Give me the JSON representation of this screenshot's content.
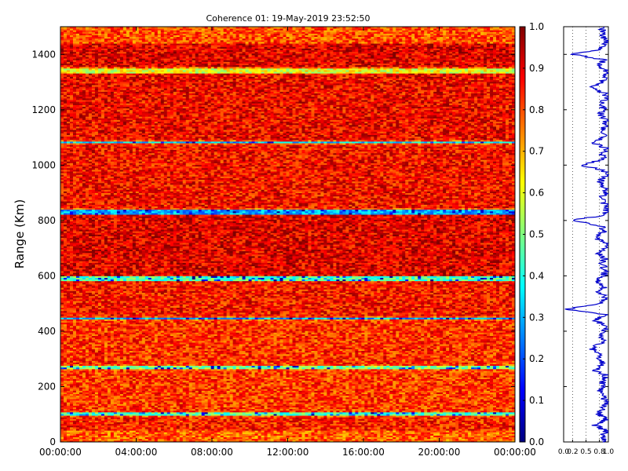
{
  "figure": {
    "title": "Coherence 01: 19-May-2019 23:52:50"
  },
  "colors": {
    "colormap": [
      "#00007f",
      "#0000ff",
      "#007fff",
      "#00ffff",
      "#7fff7f",
      "#ffff00",
      "#ff7f00",
      "#ff0000",
      "#7f0000"
    ],
    "profile_line": "#0000cc"
  },
  "chart_data": [
    {
      "type": "heatmap",
      "colormap": "jet",
      "xlabel": "",
      "ylabel": "Range (Km)",
      "x_ticks": [
        "00:00:00",
        "04:00:00",
        "08:00:00",
        "12:00:00",
        "16:00:00",
        "20:00:00",
        "00:00:00"
      ],
      "y_ticks": [
        0,
        200,
        400,
        600,
        800,
        1000,
        1200,
        1400
      ],
      "ylim": [
        0,
        1500
      ],
      "clim": [
        0.0,
        1.0
      ],
      "colorbar_ticks": [
        "0.0",
        "0.1",
        "0.2",
        "0.3",
        "0.4",
        "0.5",
        "0.6",
        "0.7",
        "0.8",
        "0.9",
        "1.0"
      ],
      "range_band_coherence": [
        {
          "range": [
            0,
            40
          ],
          "value": 0.78
        },
        {
          "range": [
            40,
            90
          ],
          "value": 0.85
        },
        {
          "range": [
            95,
            108
          ],
          "value": 0.45
        },
        {
          "range": [
            110,
            260
          ],
          "value": 0.82
        },
        {
          "range": [
            262,
            275
          ],
          "value": 0.5
        },
        {
          "range": [
            280,
            440
          ],
          "value": 0.83
        },
        {
          "range": [
            442,
            450
          ],
          "value": 0.3
        },
        {
          "range": [
            455,
            580
          ],
          "value": 0.86
        },
        {
          "range": [
            582,
            598
          ],
          "value": 0.45
        },
        {
          "range": [
            600,
            820
          ],
          "value": 0.9
        },
        {
          "range": [
            825,
            840
          ],
          "value": 0.3
        },
        {
          "range": [
            845,
            1075
          ],
          "value": 0.87
        },
        {
          "range": [
            1078,
            1088
          ],
          "value": 0.35
        },
        {
          "range": [
            1090,
            1330
          ],
          "value": 0.88
        },
        {
          "range": [
            1335,
            1350
          ],
          "value": 0.6
        },
        {
          "range": [
            1355,
            1440
          ],
          "value": 0.9
        },
        {
          "range": [
            1450,
            1500
          ],
          "value": 0.8
        }
      ],
      "grid": false
    },
    {
      "type": "line",
      "xlim": [
        0.0,
        1.0
      ],
      "x_ticks": [
        "0.0",
        "0.2",
        "0.5",
        "0.8",
        "1.0"
      ],
      "ylim": [
        0,
        1500
      ],
      "profile": {
        "range": [
          0,
          20,
          40,
          60,
          80,
          100,
          120,
          140,
          160,
          180,
          200,
          220,
          240,
          260,
          280,
          300,
          320,
          340,
          360,
          380,
          400,
          420,
          440,
          460,
          480,
          500,
          520,
          540,
          560,
          580,
          600,
          620,
          640,
          660,
          680,
          700,
          720,
          740,
          760,
          780,
          800,
          820,
          840,
          860,
          880,
          900,
          920,
          940,
          960,
          980,
          1000,
          1020,
          1040,
          1060,
          1080,
          1100,
          1120,
          1140,
          1160,
          1180,
          1200,
          1220,
          1240,
          1260,
          1280,
          1300,
          1320,
          1340,
          1360,
          1380,
          1400,
          1420,
          1440,
          1460,
          1480,
          1500
        ],
        "coherence": [
          0.9,
          0.85,
          0.95,
          0.7,
          0.95,
          0.8,
          0.85,
          0.95,
          0.9,
          0.8,
          0.9,
          0.85,
          0.95,
          0.7,
          0.9,
          0.8,
          0.85,
          0.6,
          0.92,
          0.8,
          0.9,
          0.95,
          0.7,
          0.9,
          0.05,
          0.85,
          0.95,
          0.8,
          0.9,
          0.75,
          0.9,
          0.95,
          0.85,
          0.9,
          0.8,
          0.95,
          0.9,
          0.7,
          0.9,
          0.85,
          0.2,
          0.9,
          0.95,
          0.9,
          0.85,
          0.95,
          0.9,
          0.8,
          0.95,
          0.9,
          0.4,
          0.9,
          0.85,
          0.95,
          0.7,
          0.9,
          0.85,
          0.9,
          0.95,
          0.8,
          0.9,
          0.85,
          0.95,
          0.9,
          0.6,
          0.85,
          0.9,
          0.95,
          0.8,
          0.9,
          0.2,
          0.85,
          0.95,
          0.9,
          0.85,
          0.9
        ]
      },
      "grid": true
    }
  ]
}
